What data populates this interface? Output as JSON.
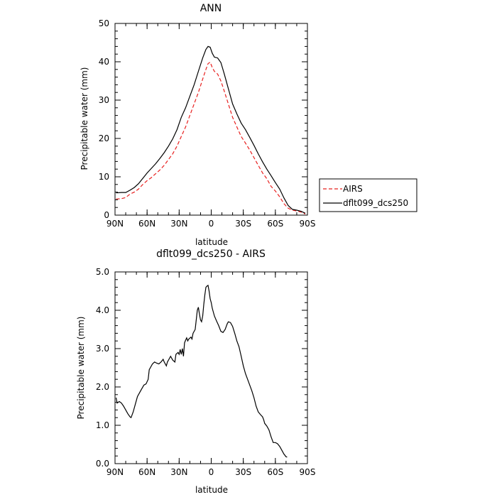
{
  "chart_data": [
    {
      "type": "line",
      "title": "ANN",
      "xlabel": "latitude",
      "ylabel": "Precipitable water (mm)",
      "xlim": [
        90,
        -90
      ],
      "ylim": [
        0,
        50
      ],
      "x_ticks": [
        "90N",
        "60N",
        "30N",
        "0",
        "30S",
        "60S",
        "90S"
      ],
      "y_ticks": [
        "0",
        "10",
        "20",
        "30",
        "40",
        "50"
      ],
      "legend_position": "right",
      "series": [
        {
          "name": "AIRS",
          "color": "#e8201f",
          "dash": true,
          "points": [
            [
              89,
              4.2
            ],
            [
              84,
              4.3
            ],
            [
              80,
              4.6
            ],
            [
              76,
              5.5
            ],
            [
              72,
              6.0
            ],
            [
              68,
              6.8
            ],
            [
              64,
              8.0
            ],
            [
              60,
              9.0
            ],
            [
              56,
              9.8
            ],
            [
              52,
              10.8
            ],
            [
              48,
              11.8
            ],
            [
              44,
              13.0
            ],
            [
              40,
              14.5
            ],
            [
              36,
              16.0
            ],
            [
              32,
              18.0
            ],
            [
              28,
              20.5
            ],
            [
              24,
              23.0
            ],
            [
              20,
              26.0
            ],
            [
              16,
              29.0
            ],
            [
              12,
              32.0
            ],
            [
              8,
              35.5
            ],
            [
              5,
              38.0
            ],
            [
              3,
              39.5
            ],
            [
              1,
              39.9
            ],
            [
              -1,
              38.5
            ],
            [
              -3,
              37.5
            ],
            [
              -6,
              36.8
            ],
            [
              -9,
              35.0
            ],
            [
              -12,
              32.5
            ],
            [
              -16,
              29.0
            ],
            [
              -20,
              25.5
            ],
            [
              -24,
              23.0
            ],
            [
              -28,
              20.5
            ],
            [
              -32,
              18.8
            ],
            [
              -36,
              17.0
            ],
            [
              -40,
              15.0
            ],
            [
              -44,
              13.0
            ],
            [
              -48,
              11.0
            ],
            [
              -52,
              9.5
            ],
            [
              -56,
              7.5
            ],
            [
              -60,
              6.3
            ],
            [
              -64,
              4.8
            ],
            [
              -68,
              3.0
            ],
            [
              -72,
              1.8
            ],
            [
              -76,
              1.3
            ],
            [
              -80,
              1.1
            ],
            [
              -84,
              0.8
            ],
            [
              -88,
              0.3
            ]
          ]
        },
        {
          "name": "dflt099_dcs250",
          "color": "#000000",
          "dash": false,
          "points": [
            [
              89,
              5.8
            ],
            [
              84,
              5.9
            ],
            [
              80,
              5.9
            ],
            [
              76,
              6.5
            ],
            [
              72,
              7.2
            ],
            [
              68,
              8.2
            ],
            [
              64,
              9.6
            ],
            [
              60,
              11.0
            ],
            [
              56,
              12.2
            ],
            [
              52,
              13.4
            ],
            [
              48,
              14.8
            ],
            [
              44,
              16.3
            ],
            [
              40,
              18.0
            ],
            [
              36,
              19.9
            ],
            [
              32,
              22.3
            ],
            [
              28,
              25.5
            ],
            [
              24,
              28.0
            ],
            [
              20,
              31.0
            ],
            [
              16,
              34.0
            ],
            [
              12,
              37.5
            ],
            [
              8,
              41.0
            ],
            [
              5,
              43.2
            ],
            [
              3,
              44.0
            ],
            [
              1,
              43.8
            ],
            [
              -1,
              42.2
            ],
            [
              -3,
              41.2
            ],
            [
              -6,
              41.0
            ],
            [
              -9,
              39.8
            ],
            [
              -12,
              37.0
            ],
            [
              -16,
              33.0
            ],
            [
              -20,
              29.0
            ],
            [
              -24,
              26.4
            ],
            [
              -28,
              24.0
            ],
            [
              -32,
              22.3
            ],
            [
              -36,
              20.3
            ],
            [
              -40,
              18.2
            ],
            [
              -44,
              16.0
            ],
            [
              -48,
              13.9
            ],
            [
              -52,
              12.0
            ],
            [
              -56,
              10.3
            ],
            [
              -60,
              8.5
            ],
            [
              -64,
              6.8
            ],
            [
              -68,
              4.5
            ],
            [
              -72,
              2.5
            ],
            [
              -76,
              1.5
            ],
            [
              -80,
              1.3
            ],
            [
              -84,
              1.0
            ],
            [
              -88,
              0.5
            ]
          ]
        }
      ]
    },
    {
      "type": "line",
      "title": "dflt099_dcs250 - AIRS",
      "xlabel": "latitude",
      "ylabel": "Precipitable water (mm)",
      "xlim": [
        90,
        -90
      ],
      "ylim": [
        0,
        5
      ],
      "x_ticks": [
        "90N",
        "60N",
        "30N",
        "0",
        "30S",
        "60S",
        "90S"
      ],
      "y_ticks": [
        "0.0",
        "1.0",
        "2.0",
        "3.0",
        "4.0",
        "5.0"
      ],
      "series": [
        {
          "color": "#000000",
          "dash": false,
          "points": [
            [
              89,
              1.72
            ],
            [
              88,
              1.58
            ],
            [
              86,
              1.62
            ],
            [
              84,
              1.58
            ],
            [
              82,
              1.5
            ],
            [
              80,
              1.4
            ],
            [
              78,
              1.3
            ],
            [
              76,
              1.22
            ],
            [
              75,
              1.2
            ],
            [
              73,
              1.35
            ],
            [
              71,
              1.55
            ],
            [
              69,
              1.75
            ],
            [
              67,
              1.85
            ],
            [
              65,
              1.95
            ],
            [
              63,
              2.05
            ],
            [
              61,
              2.08
            ],
            [
              59,
              2.2
            ],
            [
              58,
              2.45
            ],
            [
              57,
              2.5
            ],
            [
              55,
              2.6
            ],
            [
              53,
              2.65
            ],
            [
              51,
              2.62
            ],
            [
              49,
              2.6
            ],
            [
              47,
              2.65
            ],
            [
              45,
              2.72
            ],
            [
              44,
              2.65
            ],
            [
              42,
              2.55
            ],
            [
              41,
              2.65
            ],
            [
              39,
              2.75
            ],
            [
              38,
              2.8
            ],
            [
              36,
              2.7
            ],
            [
              34,
              2.65
            ],
            [
              33,
              2.85
            ],
            [
              31,
              2.9
            ],
            [
              30,
              2.85
            ],
            [
              29,
              2.98
            ],
            [
              28,
              2.85
            ],
            [
              27,
              3.0
            ],
            [
              26,
              2.8
            ],
            [
              25,
              3.15
            ],
            [
              24,
              3.22
            ],
            [
              23,
              3.28
            ],
            [
              22,
              3.2
            ],
            [
              21,
              3.25
            ],
            [
              19,
              3.3
            ],
            [
              18,
              3.25
            ],
            [
              17,
              3.4
            ],
            [
              15,
              3.5
            ],
            [
              14,
              3.75
            ],
            [
              13,
              4.0
            ],
            [
              12,
              4.08
            ],
            [
              11,
              3.9
            ],
            [
              10,
              3.75
            ],
            [
              9,
              3.7
            ],
            [
              8,
              3.85
            ],
            [
              7,
              4.15
            ],
            [
              6,
              4.4
            ],
            [
              5,
              4.6
            ],
            [
              4,
              4.63
            ],
            [
              3,
              4.65
            ],
            [
              2,
              4.5
            ],
            [
              1,
              4.3
            ],
            [
              0,
              4.2
            ],
            [
              -1,
              4.05
            ],
            [
              -3,
              3.85
            ],
            [
              -5,
              3.72
            ],
            [
              -7,
              3.6
            ],
            [
              -9,
              3.45
            ],
            [
              -11,
              3.42
            ],
            [
              -13,
              3.5
            ],
            [
              -15,
              3.65
            ],
            [
              -16,
              3.7
            ],
            [
              -18,
              3.68
            ],
            [
              -20,
              3.58
            ],
            [
              -22,
              3.4
            ],
            [
              -24,
              3.2
            ],
            [
              -26,
              3.05
            ],
            [
              -28,
              2.8
            ],
            [
              -30,
              2.55
            ],
            [
              -32,
              2.35
            ],
            [
              -34,
              2.2
            ],
            [
              -36,
              2.05
            ],
            [
              -38,
              1.9
            ],
            [
              -40,
              1.72
            ],
            [
              -42,
              1.5
            ],
            [
              -44,
              1.35
            ],
            [
              -46,
              1.28
            ],
            [
              -48,
              1.22
            ],
            [
              -49,
              1.15
            ],
            [
              -50,
              1.05
            ],
            [
              -52,
              0.98
            ],
            [
              -54,
              0.88
            ],
            [
              -56,
              0.7
            ],
            [
              -58,
              0.55
            ],
            [
              -60,
              0.55
            ],
            [
              -62,
              0.52
            ],
            [
              -64,
              0.45
            ],
            [
              -66,
              0.35
            ],
            [
              -68,
              0.25
            ],
            [
              -70,
              0.18
            ],
            [
              -71,
              0.17
            ]
          ]
        }
      ]
    }
  ]
}
